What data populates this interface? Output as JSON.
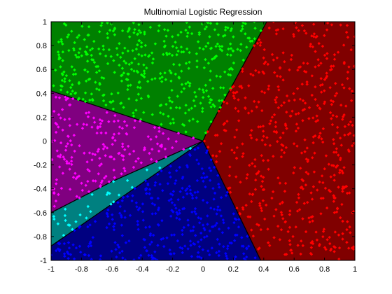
{
  "chart_data": {
    "type": "scatter",
    "title": "Multinomial Logistic Regression",
    "xlabel": "",
    "ylabel": "",
    "xlim": [
      -1,
      1
    ],
    "ylim": [
      -1,
      1
    ],
    "grid": false,
    "xticks": [
      -1,
      -0.8,
      -0.6,
      -0.4,
      -0.2,
      0,
      0.2,
      0.4,
      0.6,
      0.8,
      1
    ],
    "yticks": [
      -1,
      -0.8,
      -0.6,
      -0.4,
      -0.2,
      0,
      0.2,
      0.4,
      0.6,
      0.8,
      1
    ],
    "xtick_labels": [
      "-1",
      "-0.8",
      "-0.6",
      "-0.4",
      "-0.2",
      "0",
      "0.2",
      "0.4",
      "0.6",
      "0.8",
      "1"
    ],
    "ytick_labels": [
      "-1",
      "-0.8",
      "-0.6",
      "-0.4",
      "-0.2",
      "0",
      "0.2",
      "0.4",
      "0.6",
      "0.8",
      "1"
    ],
    "regions": [
      {
        "name": "green-class",
        "fill": "#008000",
        "polygon": [
          [
            -1,
            1
          ],
          [
            0.42,
            1
          ],
          [
            0.02,
            0.06
          ],
          [
            0,
            0
          ],
          [
            -1,
            0.42
          ]
        ]
      },
      {
        "name": "red-class",
        "fill": "#800000",
        "polygon": [
          [
            0.42,
            1
          ],
          [
            1,
            1
          ],
          [
            1,
            -1
          ],
          [
            0.38,
            -1
          ],
          [
            0,
            0
          ],
          [
            0.02,
            0.06
          ]
        ]
      },
      {
        "name": "magenta-class",
        "fill": "#800080",
        "polygon": [
          [
            -1,
            0.42
          ],
          [
            0,
            0
          ],
          [
            -0.6,
            -0.34
          ],
          [
            -1,
            -0.6
          ]
        ]
      },
      {
        "name": "cyan-class",
        "fill": "#008080",
        "polygon": [
          [
            -1,
            -0.6
          ],
          [
            -0.6,
            -0.34
          ],
          [
            0,
            0
          ],
          [
            -1,
            -0.88
          ]
        ]
      },
      {
        "name": "blue-class",
        "fill": "#000080",
        "polygon": [
          [
            -1,
            -0.88
          ],
          [
            0,
            0
          ],
          [
            0.38,
            -1
          ],
          [
            -1,
            -1
          ]
        ]
      }
    ],
    "series": [
      {
        "name": "green",
        "color": "#00ff00",
        "count": 420
      },
      {
        "name": "red",
        "color": "#ff0000",
        "count": 520
      },
      {
        "name": "magenta",
        "color": "#ff00ff",
        "count": 190
      },
      {
        "name": "cyan",
        "color": "#00ffff",
        "count": 28
      },
      {
        "name": "blue",
        "color": "#0000ff",
        "count": 330
      }
    ]
  }
}
